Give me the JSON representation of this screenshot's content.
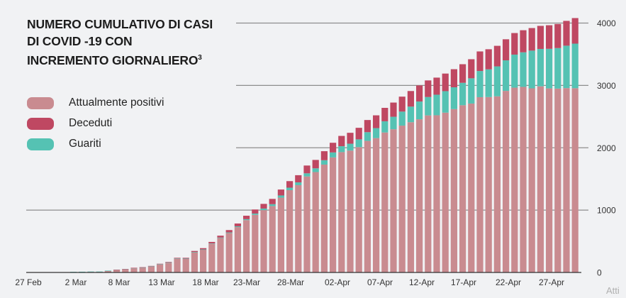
{
  "chart_data": {
    "type": "bar",
    "stacked": true,
    "title": "NUMERO CUMULATIVO DI CASI DI COVID -19  CON INCREMENTO GIORNALIERO",
    "title_lines": [
      "NUMERO CUMULATIVO DI CASI",
      "DI COVID -19  CON",
      "INCREMENTO GIORNALIERO"
    ],
    "title_superscript": "3",
    "xlabel": "",
    "ylabel": "",
    "ylim": [
      0,
      4000
    ],
    "yticks": [
      0,
      1000,
      2000,
      3000,
      4000
    ],
    "grid": true,
    "y_axis_side": "right",
    "legend_placement": "top-left",
    "x_tick_labels": [
      "27 Feb",
      "2 Mar",
      "8 Mar",
      "13 Mar",
      "18 Mar",
      "23-Mar",
      "28-Mar",
      "02-Apr",
      "07-Apr",
      "12-Apr",
      "17-Apr",
      "22-Apr",
      "27-Apr"
    ],
    "series": [
      {
        "name": "Attualmente positivi",
        "color": "#c98b90",
        "values": [
          1,
          1,
          2,
          3,
          5,
          7,
          8,
          10,
          10,
          25,
          39,
          48,
          67,
          76,
          95,
          129,
          157,
          220,
          218,
          325,
          365,
          459,
          552,
          632,
          728,
          840,
          925,
          1000,
          1065,
          1200,
          1320,
          1400,
          1540,
          1610,
          1730,
          1845,
          1930,
          1955,
          2010,
          2110,
          2155,
          2245,
          2297,
          2355,
          2410,
          2457,
          2519,
          2521,
          2563,
          2620,
          2682,
          2709,
          2811,
          2813,
          2825,
          2912,
          2964,
          2976,
          2953,
          2985,
          2952,
          2949,
          2957,
          2955
        ]
      },
      {
        "name": "Deceduti",
        "color": "#bf4862",
        "values": [
          0,
          0,
          0,
          0,
          0,
          0,
          0,
          0,
          0,
          0,
          1,
          2,
          3,
          4,
          5,
          6,
          8,
          10,
          12,
          15,
          20,
          25,
          30,
          38,
          45,
          55,
          65,
          75,
          85,
          95,
          105,
          115,
          125,
          135,
          145,
          155,
          165,
          175,
          185,
          195,
          205,
          215,
          228,
          240,
          250,
          258,
          266,
          274,
          282,
          290,
          298,
          306,
          314,
          322,
          330,
          338,
          346,
          354,
          362,
          370,
          378,
          386,
          398,
          410
        ]
      },
      {
        "name": "Guariti",
        "color": "#55c2b3",
        "values": [
          0,
          0,
          0,
          0,
          0,
          3,
          4,
          5,
          5,
          5,
          5,
          5,
          5,
          5,
          5,
          5,
          5,
          5,
          5,
          5,
          5,
          6,
          8,
          10,
          12,
          15,
          20,
          25,
          30,
          35,
          40,
          45,
          50,
          60,
          70,
          80,
          95,
          110,
          125,
          140,
          160,
          180,
          200,
          225,
          250,
          285,
          295,
          330,
          345,
          350,
          360,
          405,
          420,
          445,
          480,
          490,
          530,
          555,
          605,
          600,
          635,
          650,
          680,
          715
        ]
      }
    ]
  },
  "watermark": "Atti"
}
